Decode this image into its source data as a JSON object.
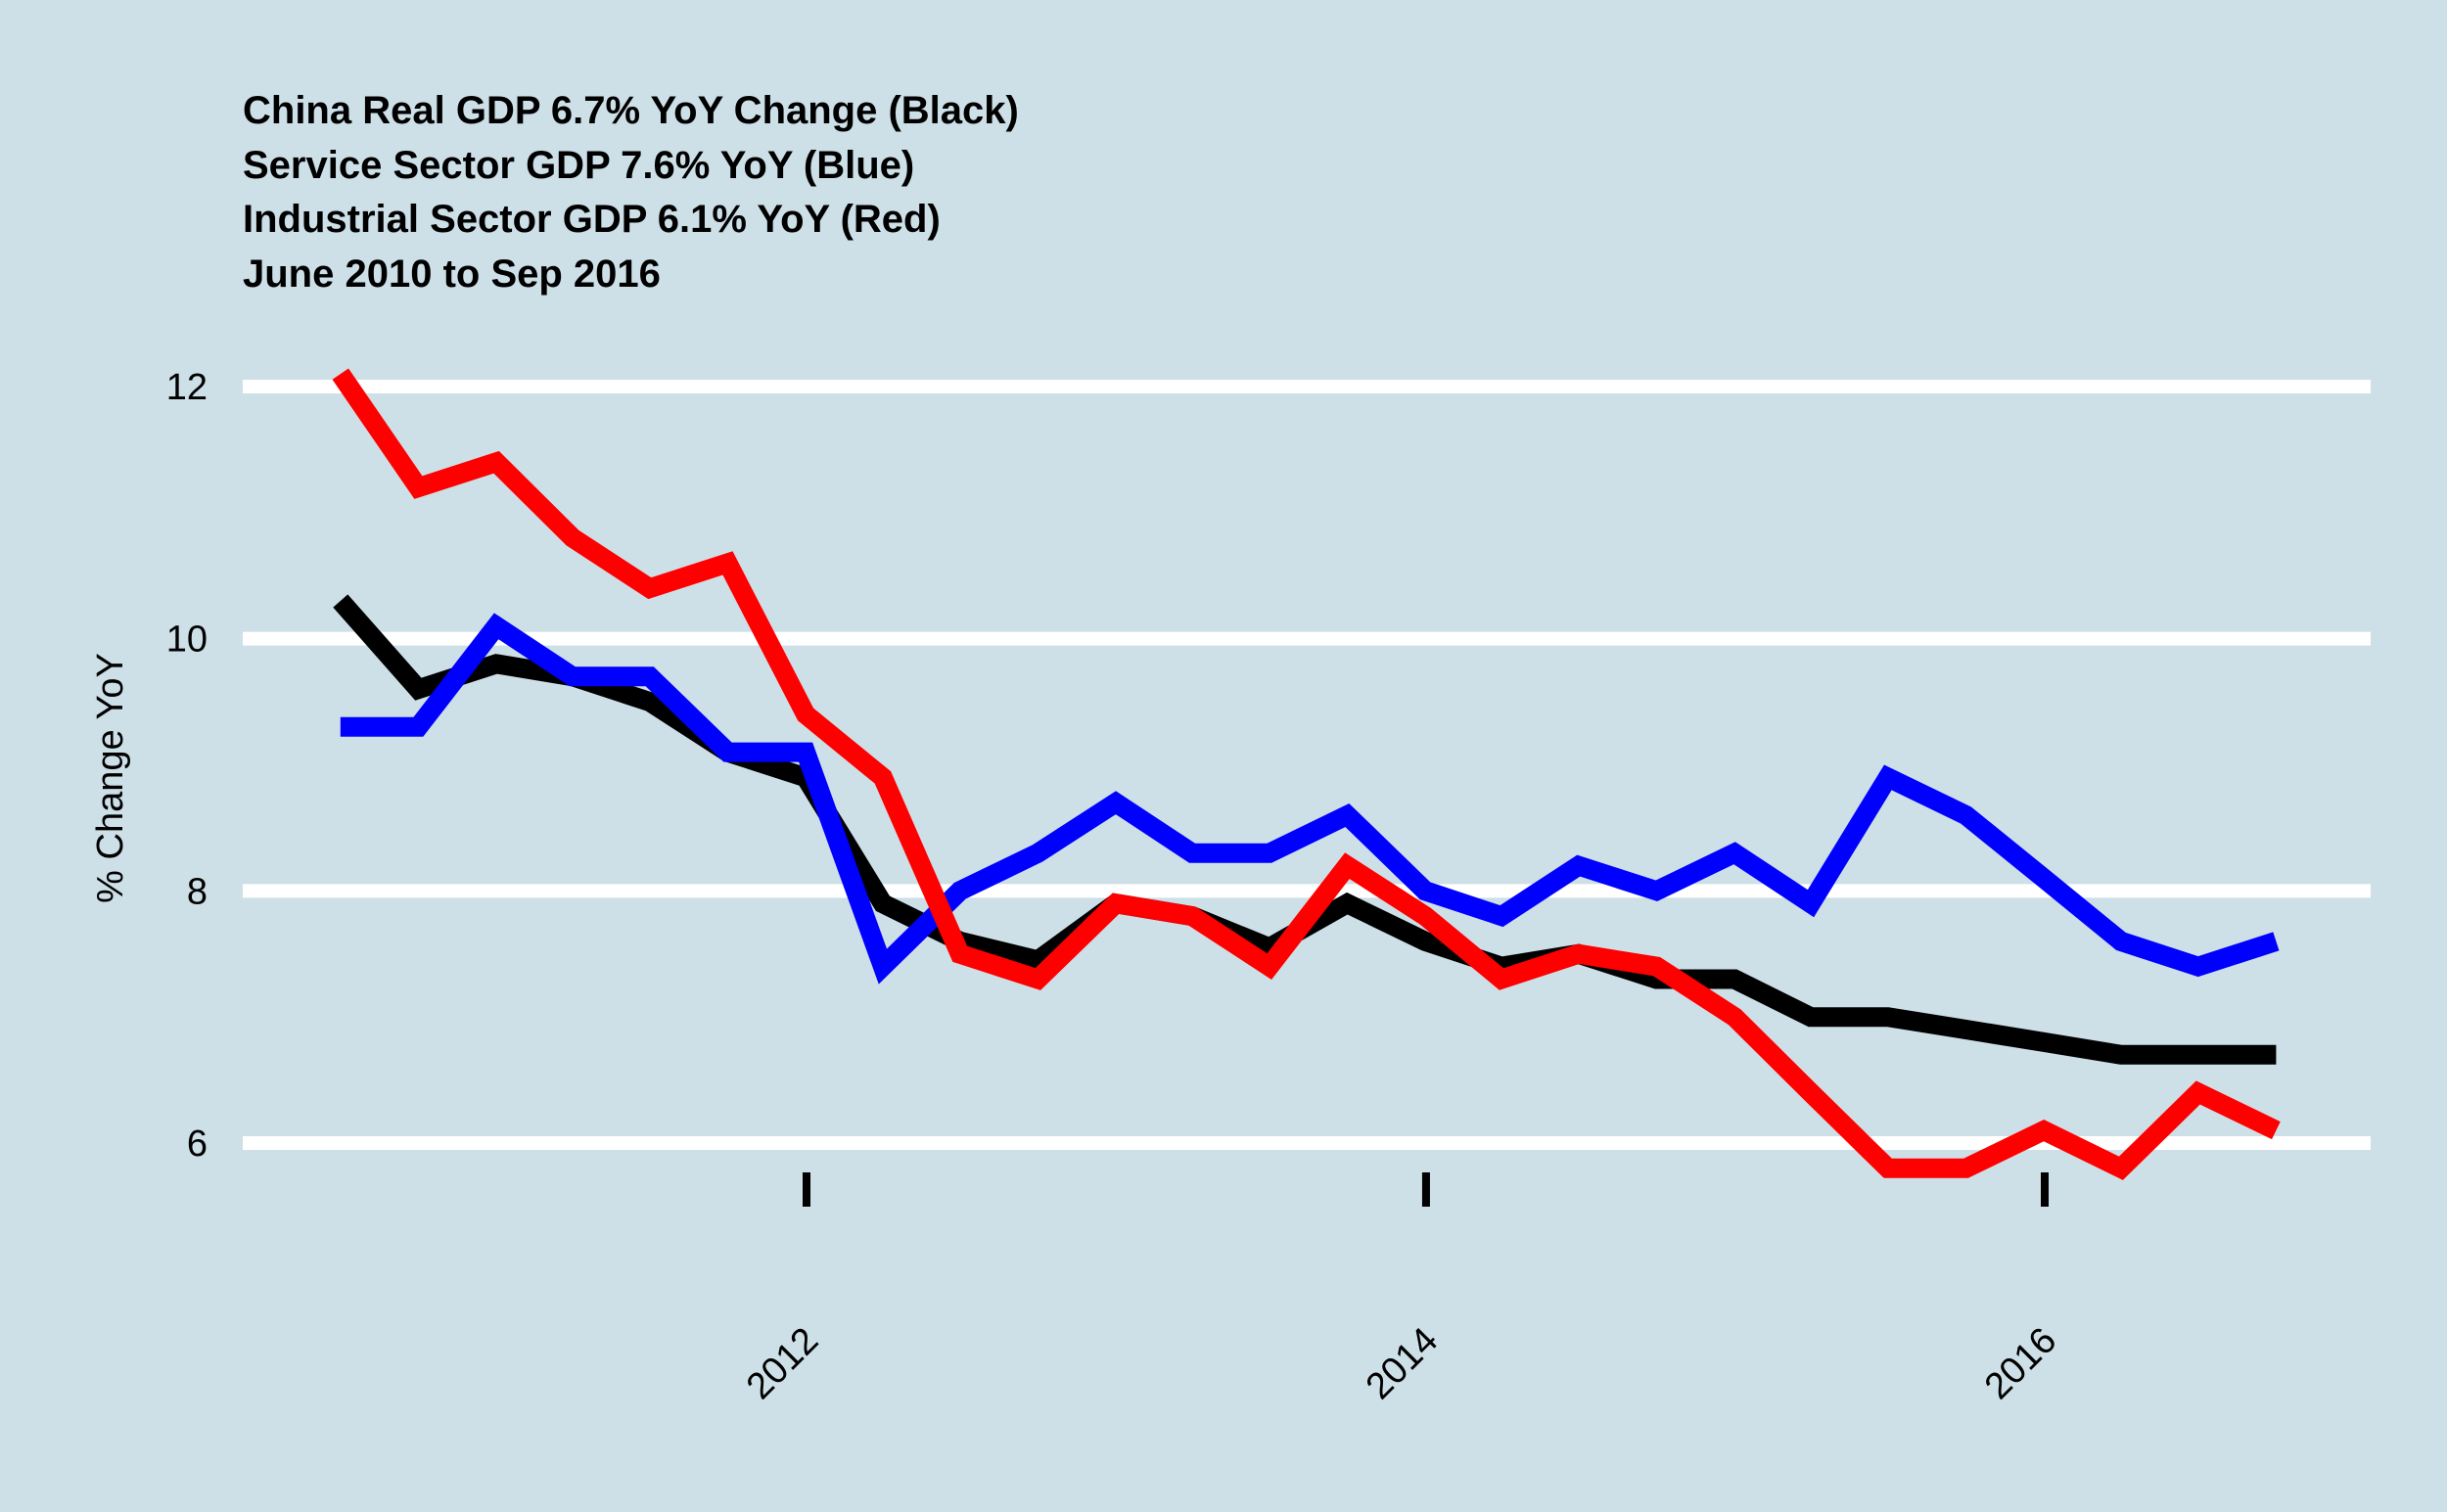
{
  "chart_data": {
    "type": "line",
    "title_lines": [
      "China Real GDP 6.7% YoY Change (Black)",
      "Service Sector GDP 7.6% YoY (Blue)",
      "Industrial Sector GDP 6.1% YoY (Red)",
      "June 2010 to Sep 2016"
    ],
    "xlabel": "",
    "ylabel": "% Change YoY",
    "x_ticks": [
      "2012",
      "2014",
      "2016"
    ],
    "y_ticks": [
      6,
      8,
      10,
      12
    ],
    "ylim": [
      5.0,
      12.2
    ],
    "xlim": [
      "2010-04-01",
      "2016-12-01"
    ],
    "grid": "horizontal",
    "legend": "none",
    "x": [
      "2010-06-30",
      "2010-09-30",
      "2010-12-31",
      "2011-03-31",
      "2011-06-30",
      "2011-09-30",
      "2011-12-31",
      "2012-03-31",
      "2012-06-30",
      "2012-09-30",
      "2012-12-31",
      "2013-03-31",
      "2013-06-30",
      "2013-09-30",
      "2013-12-31",
      "2014-03-31",
      "2014-06-30",
      "2014-09-30",
      "2014-12-31",
      "2015-03-31",
      "2015-06-30",
      "2015-09-30",
      "2015-12-31",
      "2016-03-31",
      "2016-06-30",
      "2016-09-30"
    ],
    "series": [
      {
        "name": "China Real GDP",
        "color": "#000000",
        "values": [
          10.3,
          9.6,
          9.8,
          9.7,
          9.5,
          9.1,
          8.9,
          7.9,
          7.6,
          7.45,
          7.9,
          7.8,
          7.55,
          7.9,
          7.6,
          7.4,
          7.5,
          7.3,
          7.3,
          7.0,
          7.0,
          6.9,
          6.8,
          6.7,
          6.7,
          6.7
        ]
      },
      {
        "name": "Service Sector GDP",
        "color": "#0000ff",
        "values": [
          9.3,
          9.3,
          10.1,
          9.7,
          9.7,
          9.1,
          9.1,
          7.4,
          8.0,
          8.3,
          8.7,
          8.3,
          8.3,
          8.6,
          8.0,
          7.8,
          8.2,
          8.0,
          8.3,
          7.9,
          8.9,
          8.6,
          8.1,
          7.6,
          7.4,
          7.6
        ]
      },
      {
        "name": "Industrial Sector GDP",
        "color": "#ff0000",
        "values": [
          12.1,
          11.2,
          11.4,
          10.8,
          10.4,
          10.6,
          9.4,
          8.9,
          7.5,
          7.3,
          7.9,
          7.8,
          7.4,
          8.2,
          7.8,
          7.3,
          7.5,
          7.4,
          7.0,
          6.4,
          5.8,
          5.8,
          6.1,
          5.8,
          6.4,
          6.1
        ]
      }
    ]
  }
}
